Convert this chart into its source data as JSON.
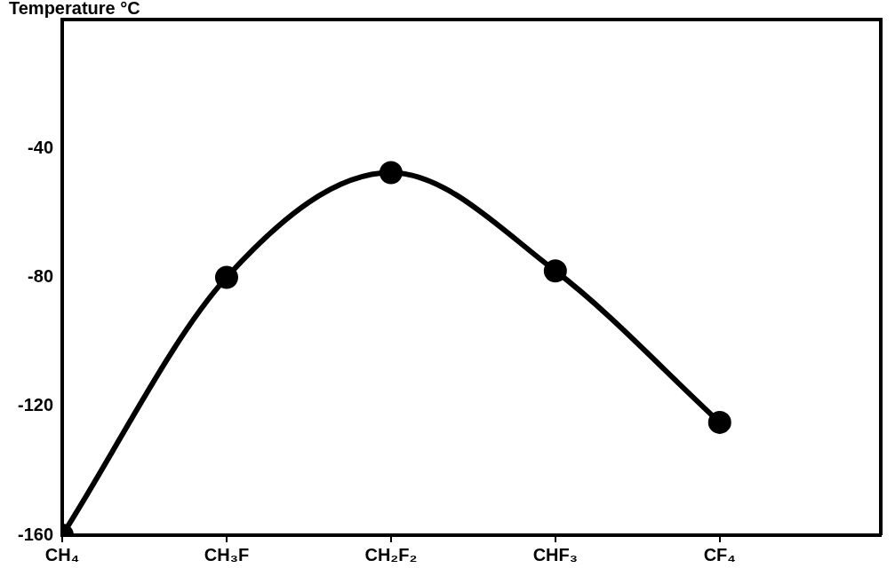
{
  "chart_data": {
    "type": "line",
    "ylabel": "Temperature °C",
    "categories": [
      "CH₄",
      "CH₃F",
      "CH₂F₂",
      "CHF₃",
      "CF₄"
    ],
    "series": [
      {
        "color": "#000000",
        "values": [
          -160,
          -80,
          -47.5,
          -78,
          -125
        ]
      }
    ],
    "ylim": [
      -160,
      0
    ],
    "yticks": [
      -160,
      -120,
      -80,
      -40
    ],
    "grid": false,
    "legend": false,
    "marker": "circle",
    "line_style": "solid"
  }
}
